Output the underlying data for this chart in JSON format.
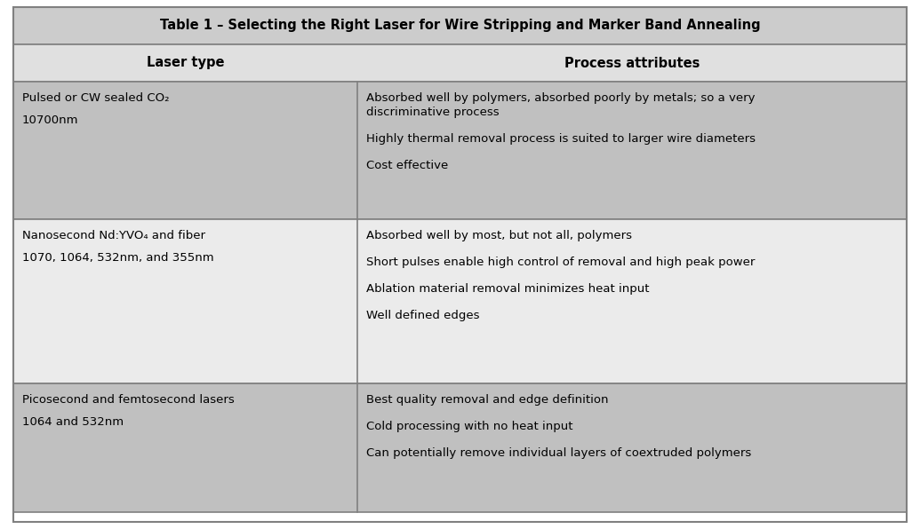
{
  "title": "Table 1 – Selecting the Right Laser for Wire Stripping and Marker Band Annealing",
  "col_headers": [
    "Laser type",
    "Process attributes"
  ],
  "col_split": 0.385,
  "rows": [
    {
      "laser_type_lines": [
        "Pulsed or CW sealed CO₂",
        "10700nm"
      ],
      "attributes": [
        "Absorbed well by polymers, absorbed poorly by metals; so a very\ndiscriminative process",
        "Highly thermal removal process is suited to larger wire diameters",
        "Cost effective"
      ],
      "bg_color": "#c0c0c0"
    },
    {
      "laser_type_lines": [
        "Nanosecond Nd:YVO₄ and fiber",
        "1070, 1064, 532nm, and 355nm"
      ],
      "attributes": [
        "Absorbed well by most, but not all, polymers",
        "Short pulses enable high control of removal and high peak power",
        "Ablation material removal minimizes heat input",
        "Well defined edges"
      ],
      "bg_color": "#ebebeb"
    },
    {
      "laser_type_lines": [
        "Picosecond and femtosecond lasers",
        "1064 and 532nm"
      ],
      "attributes": [
        "Best quality removal and edge definition",
        "Cold processing with no heat input",
        "Can potentially remove individual layers of coextruded polymers"
      ],
      "bg_color": "#c0c0c0"
    }
  ],
  "header_bg": "#e0e0e0",
  "title_bg": "#cccccc",
  "outer_bg": "#ffffff",
  "border_color": "#808080",
  "title_fontsize": 10.5,
  "header_fontsize": 10.5,
  "cell_fontsize": 9.5,
  "title_font_weight": "bold",
  "header_font_weight": "bold"
}
